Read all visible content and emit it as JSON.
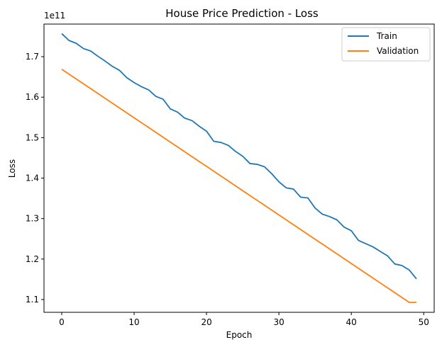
{
  "chart_data": {
    "type": "line",
    "title": "House Price Prediction - Loss",
    "xlabel": "Epoch",
    "ylabel": "Loss",
    "offset_label": "1e11",
    "xlim": [
      -2.45,
      51.45
    ],
    "ylim": [
      1.0685,
      1.7805
    ],
    "xticks": [
      0,
      10,
      20,
      30,
      40,
      50
    ],
    "yticks": [
      1.1,
      1.2,
      1.3,
      1.4,
      1.5,
      1.6,
      1.7
    ],
    "xtick_labels": [
      "0",
      "10",
      "20",
      "30",
      "40",
      "50"
    ],
    "ytick_labels": [
      "1.1",
      "1.2",
      "1.3",
      "1.4",
      "1.5",
      "1.6",
      "1.7"
    ],
    "grid": false,
    "legend_position": "top-right",
    "x": [
      0,
      1,
      2,
      3,
      4,
      5,
      6,
      7,
      8,
      9,
      10,
      11,
      12,
      13,
      14,
      15,
      16,
      17,
      18,
      19,
      20,
      21,
      22,
      23,
      24,
      25,
      26,
      27,
      28,
      29,
      30,
      31,
      32,
      33,
      34,
      35,
      36,
      37,
      38,
      39,
      40,
      41,
      42,
      43,
      44,
      45,
      46,
      47,
      48,
      49
    ],
    "series": [
      {
        "name": "Train",
        "color": "#1f77b4",
        "values": [
          1.757,
          1.74,
          1.733,
          1.72,
          1.714,
          1.701,
          1.689,
          1.676,
          1.666,
          1.648,
          1.636,
          1.626,
          1.618,
          1.602,
          1.595,
          1.571,
          1.563,
          1.548,
          1.542,
          1.528,
          1.516,
          1.491,
          1.488,
          1.481,
          1.466,
          1.454,
          1.436,
          1.434,
          1.428,
          1.411,
          1.391,
          1.376,
          1.373,
          1.353,
          1.351,
          1.326,
          1.311,
          1.305,
          1.297,
          1.279,
          1.27,
          1.246,
          1.238,
          1.23,
          1.219,
          1.208,
          1.188,
          1.184,
          1.173,
          1.151
        ]
      },
      {
        "name": "Validation",
        "color": "#ff7f0e",
        "values": [
          1.669,
          1.657,
          1.645,
          1.633,
          1.621,
          1.609,
          1.597,
          1.585,
          1.573,
          1.561,
          1.549,
          1.537,
          1.525,
          1.513,
          1.501,
          1.489,
          1.477,
          1.465,
          1.453,
          1.441,
          1.429,
          1.417,
          1.405,
          1.393,
          1.381,
          1.369,
          1.357,
          1.345,
          1.333,
          1.321,
          1.309,
          1.297,
          1.285,
          1.273,
          1.261,
          1.249,
          1.237,
          1.225,
          1.213,
          1.201,
          1.189,
          1.177,
          1.165,
          1.153,
          1.141,
          1.129,
          1.117,
          1.105,
          1.093,
          1.093
        ]
      }
    ]
  }
}
